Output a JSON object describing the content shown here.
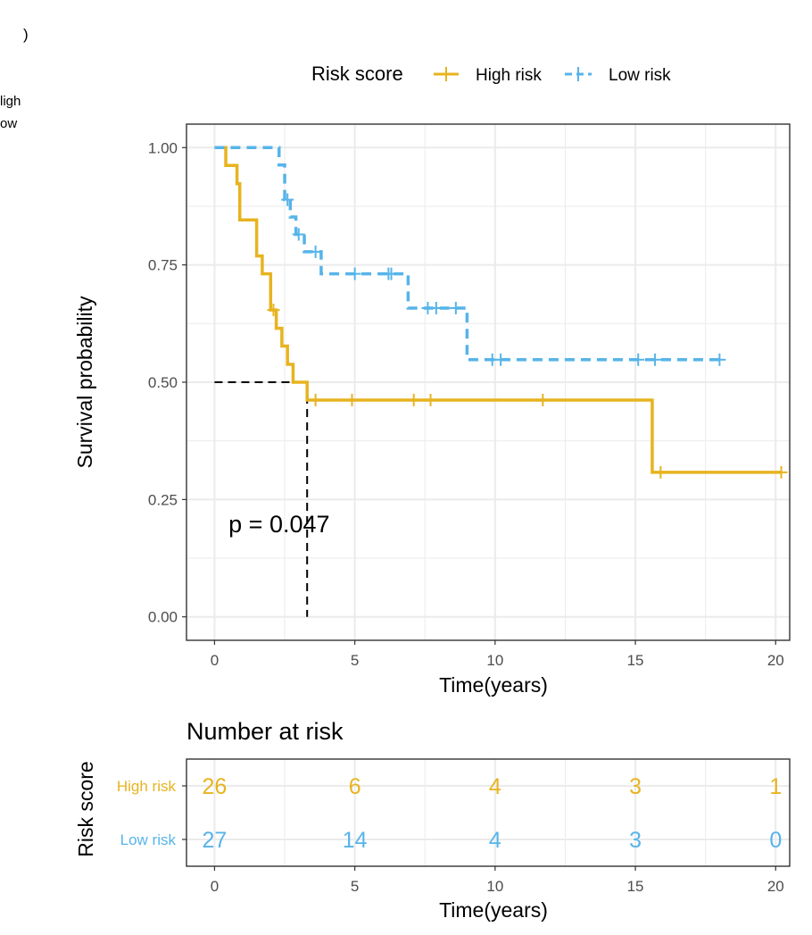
{
  "corner_fragments": {
    "paren": ")",
    "high": "ligh",
    "low": "ow"
  },
  "colors": {
    "high": "#E7B31F",
    "low": "#56B4E9",
    "axis_text": "#4D4D4D",
    "grid": "#EBEBEB",
    "median": "#000000"
  },
  "chart_data": [
    {
      "type": "line",
      "subtype": "kaplan-meier",
      "legend": {
        "title": "Risk score",
        "position": "top",
        "entries": [
          "High risk",
          "Low risk"
        ]
      },
      "xlabel": "Time(years)",
      "ylabel": "Survival probability",
      "xlim": [
        -1,
        20.5
      ],
      "ylim": [
        -0.05,
        1.05
      ],
      "xticks": [
        0,
        5,
        10,
        15,
        20
      ],
      "xtick_labels": [
        "0",
        "5",
        "10",
        "15",
        "20"
      ],
      "yticks": [
        0,
        0.25,
        0.5,
        0.75,
        1
      ],
      "ytick_labels": [
        "0.00",
        "0.25",
        "0.50",
        "0.75",
        "1.00"
      ],
      "grid": true,
      "pvalue_text": "p = 0.047",
      "pvalue_pos": [
        0.5,
        0.18
      ],
      "median_line": {
        "survival": 0.5,
        "time": 3.3
      },
      "series": [
        {
          "name": "High risk",
          "color_key": "high",
          "dashed": false,
          "steps": [
            [
              0,
              1.0
            ],
            [
              0.4,
              0.962
            ],
            [
              0.8,
              0.923
            ],
            [
              0.9,
              0.846
            ],
            [
              1.5,
              0.769
            ],
            [
              1.7,
              0.731
            ],
            [
              2.0,
              0.654
            ],
            [
              2.2,
              0.615
            ],
            [
              2.4,
              0.577
            ],
            [
              2.6,
              0.538
            ],
            [
              2.8,
              0.5
            ],
            [
              3.3,
              0.462
            ],
            [
              15.6,
              0.308
            ],
            [
              20.2,
              0.308
            ]
          ],
          "censored": [
            [
              2.1,
              0.654
            ],
            [
              3.6,
              0.462
            ],
            [
              4.9,
              0.462
            ],
            [
              7.1,
              0.462
            ],
            [
              7.7,
              0.462
            ],
            [
              11.7,
              0.462
            ],
            [
              15.9,
              0.308
            ],
            [
              20.2,
              0.308
            ]
          ]
        },
        {
          "name": "Low risk",
          "color_key": "low",
          "dashed": true,
          "steps": [
            [
              0,
              1.0
            ],
            [
              1.0,
              1.0
            ],
            [
              2.3,
              0.963
            ],
            [
              2.5,
              0.889
            ],
            [
              2.7,
              0.852
            ],
            [
              2.9,
              0.815
            ],
            [
              3.2,
              0.778
            ],
            [
              3.8,
              0.731
            ],
            [
              6.9,
              0.658
            ],
            [
              9.0,
              0.548
            ],
            [
              18.0,
              0.548
            ]
          ],
          "censored": [
            [
              2.6,
              0.889
            ],
            [
              3.0,
              0.815
            ],
            [
              3.6,
              0.778
            ],
            [
              5.0,
              0.731
            ],
            [
              6.2,
              0.731
            ],
            [
              6.3,
              0.731
            ],
            [
              7.6,
              0.658
            ],
            [
              7.9,
              0.658
            ],
            [
              8.6,
              0.658
            ],
            [
              9.9,
              0.548
            ],
            [
              10.2,
              0.548
            ],
            [
              15.1,
              0.548
            ],
            [
              15.7,
              0.548
            ],
            [
              18.0,
              0.548
            ]
          ]
        }
      ]
    },
    {
      "type": "table",
      "title": "Number at risk",
      "ylabel": "Risk score",
      "xlabel": "Time(years)",
      "xlim": [
        -1,
        20.5
      ],
      "times": [
        0,
        5,
        10,
        15,
        20
      ],
      "xtick_labels": [
        "0",
        "5",
        "10",
        "15",
        "20"
      ],
      "rows": [
        {
          "label": "High risk",
          "color_key": "high",
          "counts": [
            "26",
            "6",
            "4",
            "3",
            "1"
          ]
        },
        {
          "label": "Low risk",
          "color_key": "low",
          "counts": [
            "27",
            "14",
            "4",
            "3",
            "0"
          ]
        }
      ]
    }
  ]
}
